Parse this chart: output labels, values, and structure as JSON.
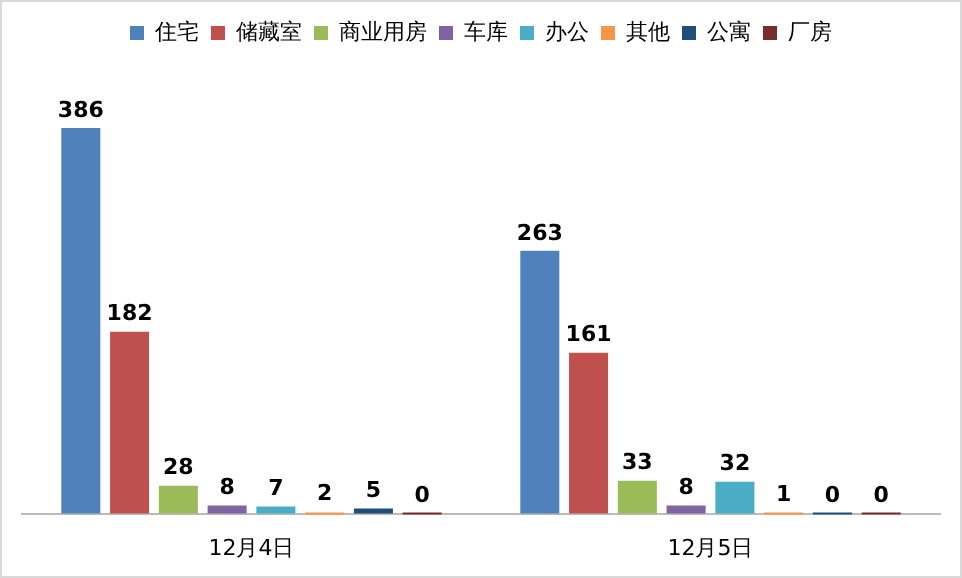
{
  "chart_data": {
    "type": "bar",
    "categories": [
      "12月4日",
      "12月5日"
    ],
    "series": [
      {
        "name": "住宅",
        "color": "#4f81bd",
        "values": [
          386,
          263
        ]
      },
      {
        "name": "储藏室",
        "color": "#c0504d",
        "values": [
          182,
          161
        ]
      },
      {
        "name": "商业用房",
        "color": "#9bbb59",
        "values": [
          28,
          33
        ]
      },
      {
        "name": "车库",
        "color": "#8064a2",
        "values": [
          8,
          8
        ]
      },
      {
        "name": "办公",
        "color": "#4bacc6",
        "values": [
          7,
          32
        ]
      },
      {
        "name": "其他",
        "color": "#f79646",
        "values": [
          2,
          1
        ]
      },
      {
        "name": "公寓",
        "color": "#1f4e79",
        "values": [
          5,
          0
        ]
      },
      {
        "name": "厂房",
        "color": "#7b2c2c",
        "values": [
          0,
          0
        ]
      }
    ],
    "data_labels": true,
    "legend": "top",
    "grid": false
  }
}
